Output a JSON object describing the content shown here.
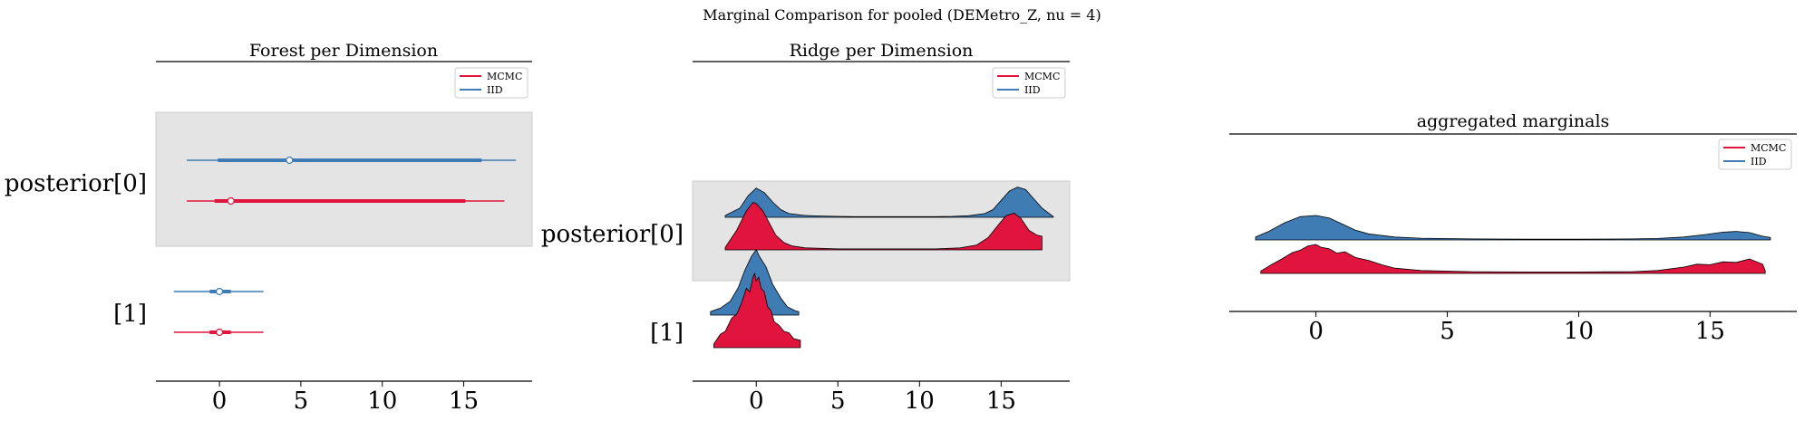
{
  "suptitle": "Marginal Comparison for pooled (DEMetro_Z, nu = 4)",
  "colors": {
    "mcmc": "#e0143c",
    "iid": "#3f7cb4",
    "band": "#e4e4e4"
  },
  "legend": {
    "mcmc": "MCMC",
    "iid": "IID"
  },
  "chart_data": [
    {
      "type": "forest",
      "title": "Forest per Dimension",
      "xlim": [
        -3.9,
        19.2
      ],
      "xticks": [
        0,
        5,
        10,
        15
      ],
      "xtick_labels": [
        "0",
        "5",
        "10",
        "15"
      ],
      "ylabels": [
        "posterior[0]",
        "[1]"
      ],
      "legend_position": "upper right",
      "series": [
        {
          "name": "MCMC",
          "dimensions": [
            {
              "label": "posterior[0]",
              "median": 0.7,
              "hdi_inner": [
                -0.3,
                15.1
              ],
              "hdi_outer": [
                -2.0,
                17.5
              ]
            },
            {
              "label": "[1]",
              "median": 0.0,
              "hdi_inner": [
                -0.6,
                0.7
              ],
              "hdi_outer": [
                -2.8,
                2.7
              ]
            }
          ]
        },
        {
          "name": "IID",
          "dimensions": [
            {
              "label": "posterior[0]",
              "median": 4.3,
              "hdi_inner": [
                -0.1,
                16.1
              ],
              "hdi_outer": [
                -2.0,
                18.2
              ]
            },
            {
              "label": "[1]",
              "median": 0.0,
              "hdi_inner": [
                -0.6,
                0.7
              ],
              "hdi_outer": [
                -2.8,
                2.7
              ]
            }
          ]
        }
      ]
    },
    {
      "type": "ridge",
      "title": "Ridge per Dimension",
      "xlim": [
        -3.9,
        19.2
      ],
      "xticks": [
        0,
        5,
        10,
        15
      ],
      "xtick_labels": [
        "0",
        "5",
        "10",
        "15"
      ],
      "ylabels": [
        "posterior[0]",
        "[1]"
      ],
      "legend_position": "upper right",
      "series": [
        {
          "name": "IID",
          "dimensions": [
            {
              "label": "posterior[0]",
              "x": [
                -1.9,
                -1.0,
                -0.5,
                0,
                0.5,
                1.0,
                1.5,
                2.0,
                3,
                4,
                5,
                6,
                7,
                8,
                9,
                10,
                11,
                12,
                13,
                14,
                14.5,
                15,
                15.5,
                16,
                16.5,
                17,
                17.5,
                18.2
              ],
              "density": [
                0.06,
                0.3,
                0.7,
                0.95,
                0.8,
                0.5,
                0.25,
                0.12,
                0.06,
                0.04,
                0.03,
                0.02,
                0.02,
                0.02,
                0.02,
                0.02,
                0.02,
                0.03,
                0.05,
                0.12,
                0.25,
                0.55,
                0.85,
                0.98,
                0.9,
                0.6,
                0.3,
                0.02
              ]
            },
            {
              "label": "[1]",
              "x": [
                -2.8,
                -2.2,
                -1.6,
                -1.1,
                -0.7,
                -0.3,
                0,
                0.2,
                0.6,
                1.0,
                1.5,
                1.9,
                2.4,
                2.6
              ],
              "density": [
                0.05,
                0.1,
                0.2,
                0.4,
                0.65,
                0.85,
                0.95,
                0.85,
                0.7,
                0.45,
                0.25,
                0.12,
                0.06,
                0.05
              ]
            }
          ]
        },
        {
          "name": "MCMC",
          "dimensions": [
            {
              "label": "posterior[0]",
              "x": [
                -1.9,
                -1.2,
                -0.6,
                -0.2,
                0,
                0.4,
                0.8,
                1.2,
                1.7,
                2.2,
                3,
                5,
                8,
                11,
                12.5,
                13.5,
                14.2,
                14.8,
                15.3,
                15.8,
                16.2,
                16.7,
                17.2,
                17.5
              ],
              "density": [
                0.05,
                0.4,
                0.8,
                0.97,
                0.95,
                0.8,
                0.55,
                0.3,
                0.15,
                0.08,
                0.04,
                0.02,
                0.02,
                0.02,
                0.04,
                0.1,
                0.25,
                0.5,
                0.7,
                0.75,
                0.65,
                0.4,
                0.3,
                0.28
              ]
            },
            {
              "label": "[1]",
              "x": [
                -2.6,
                -2.2,
                -1.9,
                -1.5,
                -1.2,
                -0.9,
                -0.6,
                -0.4,
                -0.2,
                -0.1,
                0,
                0.15,
                0.3,
                0.5,
                0.7,
                0.9,
                1.1,
                1.4,
                1.7,
                2.0,
                2.3,
                2.7
              ],
              "density": [
                0.05,
                0.18,
                0.22,
                0.4,
                0.45,
                0.6,
                0.8,
                0.75,
                0.95,
                1.0,
                0.9,
                0.95,
                0.8,
                0.75,
                0.55,
                0.5,
                0.35,
                0.3,
                0.22,
                0.2,
                0.12,
                0.1
              ]
            }
          ]
        }
      ]
    },
    {
      "type": "area",
      "title": "aggregated marginals",
      "xlim": [
        -3.3,
        18.3
      ],
      "xticks": [
        0,
        5,
        10,
        15
      ],
      "xtick_labels": [
        "0",
        "5",
        "10",
        "15"
      ],
      "legend_position": "upper right",
      "series": [
        {
          "name": "IID",
          "x": [
            -2.3,
            -1.8,
            -1.2,
            -0.6,
            0,
            0.5,
            1.0,
            1.5,
            2,
            3,
            4,
            6,
            8,
            10,
            12,
            13,
            14,
            14.8,
            15.5,
            16,
            16.5,
            17,
            17.3
          ],
          "density": [
            0.12,
            0.35,
            0.7,
            0.95,
            1.0,
            0.9,
            0.65,
            0.4,
            0.25,
            0.12,
            0.07,
            0.04,
            0.03,
            0.03,
            0.04,
            0.06,
            0.12,
            0.22,
            0.32,
            0.35,
            0.3,
            0.15,
            0.1
          ]
        },
        {
          "name": "MCMC",
          "x": [
            -2.1,
            -1.7,
            -1.3,
            -0.9,
            -0.6,
            -0.3,
            0,
            0.2,
            0.5,
            0.8,
            1.1,
            1.5,
            2,
            2.5,
            3,
            4,
            6,
            8,
            10,
            12,
            13,
            14,
            14.5,
            15,
            15.5,
            16,
            16.5,
            17,
            17.1
          ],
          "density": [
            0.08,
            0.3,
            0.5,
            0.72,
            0.8,
            0.95,
            1.0,
            0.9,
            0.85,
            0.7,
            0.75,
            0.55,
            0.45,
            0.3,
            0.18,
            0.1,
            0.06,
            0.05,
            0.05,
            0.06,
            0.1,
            0.22,
            0.32,
            0.3,
            0.4,
            0.38,
            0.5,
            0.32,
            0.1
          ]
        }
      ]
    }
  ]
}
